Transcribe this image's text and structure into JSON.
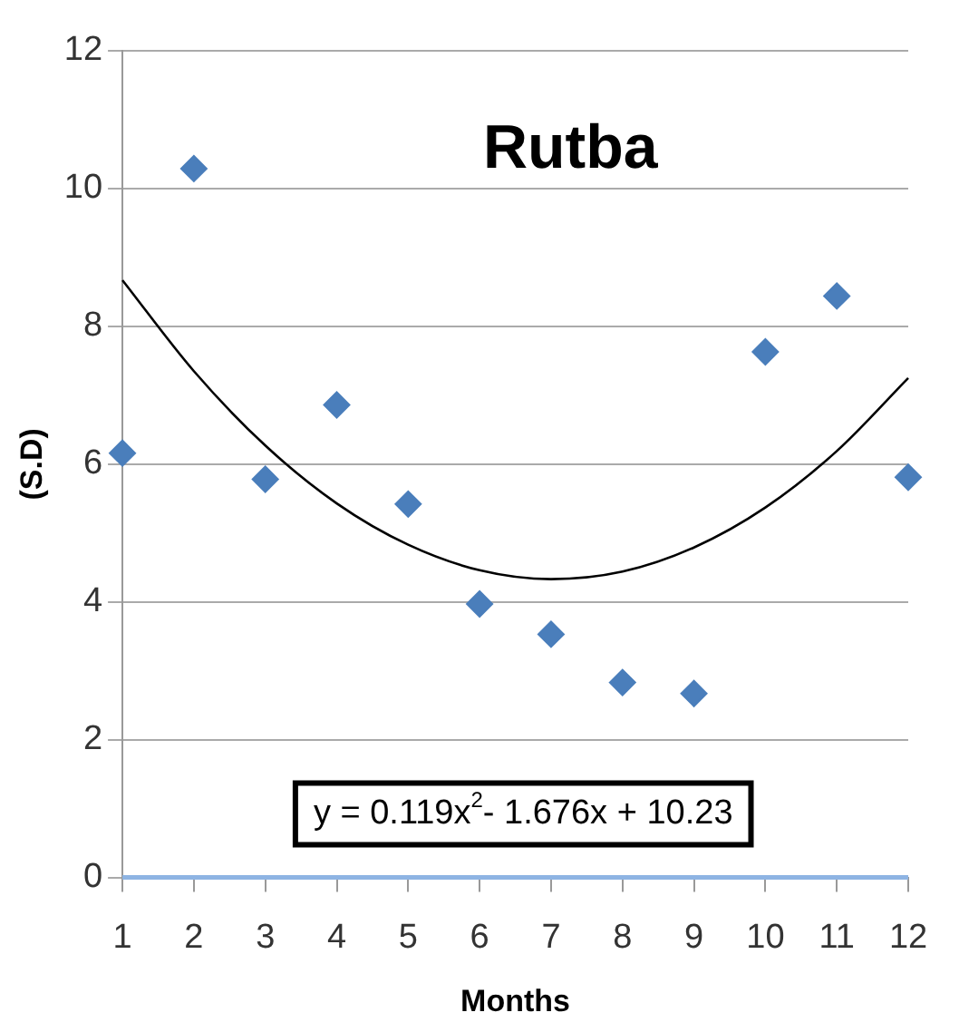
{
  "chart_data": {
    "type": "scatter",
    "title": "Rutba",
    "xlabel": "Months",
    "ylabel": "(S.D)",
    "x": [
      1,
      2,
      3,
      4,
      5,
      6,
      7,
      8,
      9,
      10,
      11,
      12
    ],
    "series": [
      {
        "color": "#4a7ebb",
        "marker": "diamond",
        "values": [
          6.16,
          10.29,
          5.78,
          6.86,
          5.42,
          3.97,
          3.53,
          2.83,
          2.67,
          7.63,
          8.44,
          5.81
        ]
      },
      {
        "type": "line",
        "color": "#000000",
        "marker": "none",
        "x": [
          1,
          2,
          3,
          4,
          5,
          6,
          7,
          8,
          9,
          10,
          11,
          12
        ],
        "values": [
          8.67,
          7.35,
          6.27,
          5.43,
          4.83,
          4.46,
          4.33,
          4.44,
          4.79,
          5.37,
          6.19,
          7.25
        ]
      }
    ],
    "annotations": [
      "y = 0.119x$^{2}$- 1.676x + 10.23"
    ],
    "xlim": [
      1,
      12
    ],
    "xticks": [
      1,
      2,
      3,
      4,
      5,
      6,
      7,
      8,
      9,
      10,
      11,
      12
    ],
    "ylim": [
      0,
      12
    ],
    "yticks": [
      0,
      2,
      4,
      6,
      8,
      10,
      12
    ],
    "grid": "y",
    "legend": false
  }
}
